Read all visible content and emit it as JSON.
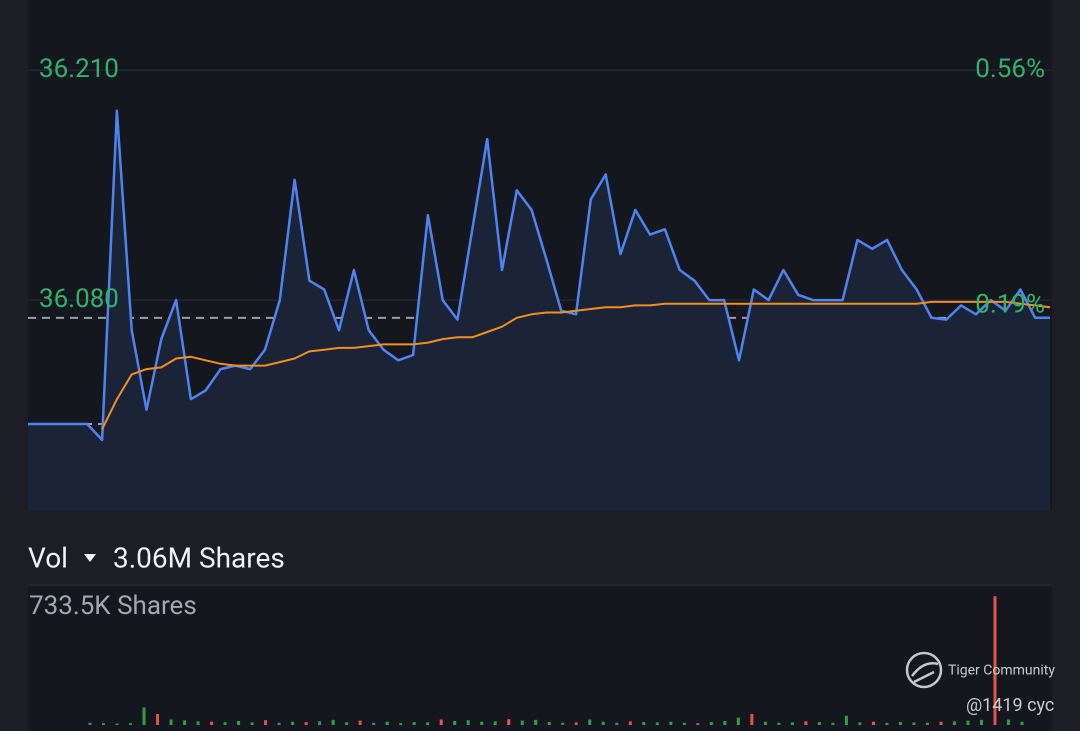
{
  "chart_data": [
    {
      "type": "line",
      "x": [
        0,
        1,
        2,
        3,
        4,
        5,
        6,
        7,
        8,
        9,
        10,
        11,
        12,
        13,
        14,
        15,
        16,
        17,
        18,
        19,
        20,
        21,
        22,
        23,
        24,
        25,
        26,
        27,
        28,
        29,
        30,
        31,
        32,
        33,
        34,
        35,
        36,
        37,
        38,
        39,
        40,
        41,
        42,
        43,
        44,
        45,
        46,
        47,
        48,
        49,
        50,
        51,
        52,
        53,
        54,
        55,
        56,
        57,
        58,
        59,
        60,
        61,
        62,
        63,
        64,
        65,
        66,
        67,
        68,
        69
      ],
      "series": [
        {
          "color": "#4f84f0",
          "values": [
            36.01,
            36.01,
            36.01,
            36.01,
            36.01,
            36.001,
            36.187,
            36.063,
            36.018,
            36.058,
            36.08,
            36.024,
            36.029,
            36.041,
            36.043,
            36.041,
            36.052,
            36.08,
            36.148,
            36.091,
            36.086,
            36.063,
            36.097,
            36.063,
            36.052,
            36.046,
            36.049,
            36.128,
            36.08,
            36.069,
            36.12,
            36.171,
            36.097,
            36.142,
            36.131,
            36.103,
            36.074,
            36.072,
            36.137,
            36.151,
            36.106,
            36.131,
            36.117,
            36.12,
            36.097,
            36.091,
            36.08,
            36.08,
            36.046,
            36.086,
            36.08,
            36.097,
            36.083,
            36.08,
            36.08,
            36.08,
            36.114,
            36.109,
            36.114,
            36.097,
            36.086,
            36.07,
            36.069,
            36.077,
            36.072,
            36.08,
            36.074,
            36.086,
            36.07,
            36.07
          ]
        },
        {
          "color": "#f0901e",
          "values": [
            null,
            null,
            null,
            null,
            null,
            36.007,
            36.024,
            36.038,
            36.041,
            36.042,
            36.047,
            36.048,
            36.046,
            36.044,
            36.043,
            36.043,
            36.043,
            36.045,
            36.047,
            36.051,
            36.052,
            36.053,
            36.053,
            36.054,
            36.055,
            36.055,
            36.055,
            36.056,
            36.058,
            36.059,
            36.059,
            36.062,
            36.065,
            36.07,
            36.072,
            36.073,
            36.073,
            36.074,
            36.075,
            36.076,
            36.076,
            36.077,
            36.077,
            36.078,
            36.078,
            36.078,
            36.078,
            36.078,
            36.078,
            36.078,
            36.078,
            36.078,
            36.078,
            36.078,
            36.078,
            36.078,
            36.078,
            36.078,
            36.078,
            36.078,
            36.078,
            36.079,
            36.079,
            36.079,
            36.079,
            36.079,
            36.079,
            36.078,
            36.077,
            36.076
          ]
        }
      ],
      "xlim": [
        0,
        69
      ],
      "ylim": [
        35.9614,
        36.2496
      ],
      "yticks": [
        {
          "value": 36.21,
          "label": "36.210"
        },
        {
          "value": 36.08,
          "label": "36.080"
        }
      ],
      "y2lim": [
        -0.131,
        0.67
      ],
      "y2ticks": [
        {
          "value": 0.56,
          "label": "0.56%"
        },
        {
          "value": 0.19,
          "label": "0.19%"
        }
      ],
      "reference_lines": [
        36.07,
        36.01
      ]
    },
    {
      "type": "bar",
      "title": "Vol",
      "subtitle": "3.06M Shares",
      "values": [
        12000,
        9000,
        8000,
        10000,
        95000,
        60000,
        30000,
        25000,
        20000,
        18000,
        15000,
        22000,
        14000,
        26000,
        12000,
        18000,
        16000,
        20000,
        28000,
        15000,
        24000,
        12000,
        18000,
        10000,
        16000,
        14000,
        30000,
        22000,
        26000,
        18000,
        20000,
        32000,
        24000,
        28000,
        16000,
        12000,
        14000,
        30000,
        18000,
        12000,
        20000,
        16000,
        14000,
        18000,
        12000,
        10000,
        16000,
        22000,
        40000,
        60000,
        18000,
        12000,
        14000,
        20000,
        16000,
        12000,
        50000,
        14000,
        18000,
        12000,
        16000,
        14000,
        12000,
        18000,
        20000,
        24000,
        28000,
        700000,
        30000,
        18000
      ],
      "colors": [
        "#2ea043",
        "#2ea043",
        "#2ea043",
        "#2ea043",
        "#2ea043",
        "#e5534b",
        "#2ea043",
        "#2ea043",
        "#2ea043",
        "#e5534b",
        "#2ea043",
        "#2ea043",
        "#2ea043",
        "#e5534b",
        "#2ea043",
        "#2ea043",
        "#e5534b",
        "#2ea043",
        "#2ea043",
        "#2ea043",
        "#e5534b",
        "#2ea043",
        "#2ea043",
        "#2ea043",
        "#2ea043",
        "#2ea043",
        "#e5534b",
        "#2ea043",
        "#2ea043",
        "#2ea043",
        "#2ea043",
        "#e5534b",
        "#2ea043",
        "#2ea043",
        "#2ea043",
        "#2ea043",
        "#e5534b",
        "#2ea043",
        "#2ea043",
        "#2ea043",
        "#e5534b",
        "#2ea043",
        "#2ea043",
        "#2ea043",
        "#2ea043",
        "#e5534b",
        "#2ea043",
        "#2ea043",
        "#2ea043",
        "#e5534b",
        "#2ea043",
        "#2ea043",
        "#2ea043",
        "#e5534b",
        "#2ea043",
        "#2ea043",
        "#2ea043",
        "#2ea043",
        "#e5534b",
        "#2ea043",
        "#2ea043",
        "#2ea043",
        "#2ea043",
        "#e5534b",
        "#2ea043",
        "#2ea043",
        "#2ea043",
        "#e5534b",
        "#2ea043",
        "#2ea043"
      ],
      "xlim": [
        0,
        69
      ],
      "ylim": [
        0,
        733500
      ],
      "yticks": [
        {
          "value": 733500,
          "label": "733.5K Shares"
        }
      ]
    }
  ],
  "watermark": {
    "brand": "Tiger Community",
    "user": "@1419 cyc"
  }
}
